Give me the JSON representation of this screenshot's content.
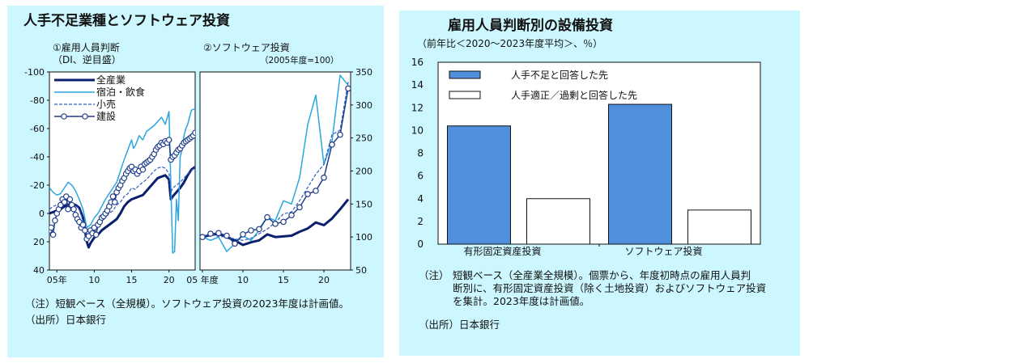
{
  "left": {
    "title": "人手不足業種とソフトウェア投資",
    "panel1_title": "①雇用人員判断",
    "panel1_subtitle": "（DI、逆目盛）",
    "panel2_title": "②ソフトウェア投資",
    "panel2_subtitle": "（2005年度=100）",
    "note": "（注）短観ベース（全規模）。ソフトウェア投資の2023年度は計画値。",
    "source": "（出所）日本銀行"
  },
  "right": {
    "title": "雇用人員判断別の設備投資",
    "subtitle": "（前年比＜2020～2023年度平均＞、％）",
    "note_label": "（注）",
    "note_lines": [
      "短観ベース（全産業全規模）。個票から、年度初時点の雇用人員判",
      "断別に、有形固定資産投資（除く土地投資）およびソフトウェア投資",
      "を集計。2023年度は計画値。"
    ],
    "source": "（出所）日本銀行"
  },
  "chart_data": [
    {
      "type": "line",
      "title": "①雇用人員判断",
      "subtitle": "（DI、逆目盛）",
      "y_inverted": true,
      "ylim": [
        -100,
        40
      ],
      "yticks": [
        -100,
        -80,
        -60,
        -40,
        -20,
        0,
        20,
        40
      ],
      "xlim": [
        2004,
        2023.5
      ],
      "xticks": [
        {
          "v": 2005,
          "label": "05年"
        },
        {
          "v": 2010,
          "label": "10"
        },
        {
          "v": 2015,
          "label": "15"
        },
        {
          "v": 2020,
          "label": "20"
        }
      ],
      "legend": [
        "全産業",
        "宿泊・飲食",
        "小売",
        "建設"
      ],
      "series": [
        {
          "name": "全産業",
          "color": "#0a1f6e",
          "width": 3,
          "style": "solid",
          "markers": false,
          "x": [
            2004.0,
            2004.5,
            2005.0,
            2005.5,
            2006.0,
            2006.5,
            2007.0,
            2007.5,
            2008.0,
            2008.5,
            2009.0,
            2009.25,
            2009.5,
            2010.0,
            2010.5,
            2011.0,
            2011.5,
            2012.0,
            2012.5,
            2013.0,
            2013.5,
            2014.0,
            2014.5,
            2015.0,
            2015.5,
            2016.0,
            2016.5,
            2017.0,
            2017.5,
            2018.0,
            2018.5,
            2019.0,
            2019.5,
            2020.0,
            2020.25,
            2020.5,
            2021.0,
            2021.5,
            2022.0,
            2022.5,
            2023.0,
            2023.5
          ],
          "y": [
            0,
            -1,
            -2,
            -3,
            -5,
            -6,
            -7,
            -6,
            -4,
            3,
            20,
            24,
            21,
            17,
            15,
            12,
            10,
            8,
            6,
            4,
            0,
            -5,
            -8,
            -10,
            -11,
            -12,
            -13,
            -16,
            -19,
            -22,
            -25,
            -26,
            -27,
            -24,
            -10,
            -12,
            -15,
            -18,
            -22,
            -27,
            -31,
            -33
          ]
        },
        {
          "name": "宿泊・飲食",
          "color": "#2aa6e0",
          "width": 1.5,
          "style": "solid",
          "markers": false,
          "x": [
            2004.0,
            2004.5,
            2005.0,
            2005.5,
            2006.0,
            2006.5,
            2007.0,
            2007.5,
            2008.0,
            2008.5,
            2009.0,
            2009.5,
            2010.0,
            2010.5,
            2011.0,
            2011.5,
            2012.0,
            2012.5,
            2013.0,
            2013.5,
            2014.0,
            2014.5,
            2015.0,
            2015.25,
            2015.5,
            2016.0,
            2016.5,
            2017.0,
            2017.5,
            2018.0,
            2018.5,
            2019.0,
            2019.5,
            2020.0,
            2020.25,
            2020.5,
            2020.75,
            2021.0,
            2021.25,
            2021.5,
            2021.75,
            2022.0,
            2022.25,
            2022.5,
            2022.75,
            2023.0,
            2023.5
          ],
          "y": [
            -18,
            -15,
            -13,
            -14,
            -18,
            -22,
            -20,
            -16,
            -10,
            -3,
            10,
            8,
            3,
            0,
            -5,
            -10,
            -14,
            -18,
            -22,
            -30,
            -38,
            -45,
            -52,
            -46,
            -48,
            -55,
            -52,
            -58,
            -60,
            -62,
            -65,
            -68,
            -63,
            -72,
            -20,
            28,
            27,
            -10,
            5,
            -40,
            -45,
            -55,
            -60,
            -63,
            -68,
            -73,
            -74
          ]
        },
        {
          "name": "小売",
          "color": "#2e5fbf",
          "width": 1.2,
          "style": "dashed",
          "markers": false,
          "x": [
            2004.0,
            2004.5,
            2005.0,
            2005.5,
            2006.0,
            2006.5,
            2007.0,
            2007.5,
            2008.0,
            2008.5,
            2009.0,
            2009.5,
            2010.0,
            2010.5,
            2011.0,
            2011.5,
            2012.0,
            2012.5,
            2013.0,
            2013.5,
            2014.0,
            2014.5,
            2015.0,
            2015.5,
            2016.0,
            2016.5,
            2017.0,
            2017.5,
            2018.0,
            2018.5,
            2019.0,
            2019.5,
            2020.0,
            2020.25,
            2020.5,
            2021.0,
            2021.5,
            2022.0,
            2022.5,
            2023.0,
            2023.5
          ],
          "y": [
            -3,
            -5,
            -6,
            -5,
            -8,
            -10,
            -8,
            -6,
            -3,
            5,
            15,
            12,
            10,
            8,
            6,
            3,
            0,
            -2,
            -6,
            -8,
            -12,
            -14,
            -18,
            -17,
            -20,
            -22,
            -24,
            -27,
            -30,
            -32,
            -33,
            -32,
            -28,
            -15,
            -18,
            -20,
            -22,
            -25,
            -28,
            -30,
            -33
          ]
        },
        {
          "name": "建設",
          "color": "#1f3d8a",
          "width": 1.5,
          "style": "solid",
          "markers": true,
          "x": [
            2004.0,
            2004.25,
            2004.5,
            2004.75,
            2005.0,
            2005.25,
            2005.5,
            2005.75,
            2006.0,
            2006.25,
            2006.5,
            2006.75,
            2007.0,
            2007.25,
            2007.5,
            2007.75,
            2008.0,
            2008.25,
            2008.5,
            2008.75,
            2009.0,
            2009.25,
            2009.5,
            2009.75,
            2010.0,
            2010.25,
            2010.5,
            2010.75,
            2011.0,
            2011.25,
            2011.5,
            2011.75,
            2012.0,
            2012.25,
            2012.5,
            2012.75,
            2013.0,
            2013.25,
            2013.5,
            2013.75,
            2014.0,
            2014.25,
            2014.5,
            2014.75,
            2015.0,
            2015.25,
            2015.5,
            2015.75,
            2016.0,
            2016.25,
            2016.5,
            2016.75,
            2017.0,
            2017.25,
            2017.5,
            2017.75,
            2018.0,
            2018.25,
            2018.5,
            2018.75,
            2019.0,
            2019.25,
            2019.5,
            2019.75,
            2020.0,
            2020.25,
            2020.5,
            2020.75,
            2021.0,
            2021.25,
            2021.5,
            2021.75,
            2022.0,
            2022.25,
            2022.5,
            2022.75,
            2023.0,
            2023.25,
            2023.5
          ],
          "y": [
            12,
            10,
            15,
            5,
            0,
            -3,
            -6,
            -10,
            -8,
            -12,
            -3,
            -10,
            -6,
            -3,
            1,
            4,
            6,
            10,
            8,
            12,
            18,
            16,
            12,
            14,
            10,
            15,
            8,
            6,
            3,
            2,
            0,
            -2,
            -5,
            -8,
            -12,
            -8,
            -15,
            -18,
            -20,
            -23,
            -25,
            -28,
            -30,
            -32,
            -33,
            -30,
            -31,
            -28,
            -30,
            -33,
            -31,
            -35,
            -36,
            -37,
            -38,
            -40,
            -42,
            -45,
            -47,
            -48,
            -50,
            -49,
            -51,
            -50,
            -52,
            -38,
            -40,
            -41,
            -43,
            -45,
            -46,
            -48,
            -50,
            -51,
            -52,
            -53,
            -54,
            -55,
            -57
          ]
        }
      ]
    },
    {
      "type": "line",
      "title": "②ソフトウェア投資",
      "subtitle": "（2005年度=100）",
      "ylim": [
        50,
        350
      ],
      "yticks": [
        50,
        100,
        150,
        200,
        250,
        300,
        350
      ],
      "xlim": [
        2004.7,
        2023.3
      ],
      "xticks": [
        {
          "v": 2005,
          "label": "05 年度"
        },
        {
          "v": 2010,
          "label": "10"
        },
        {
          "v": 2015,
          "label": "15"
        },
        {
          "v": 2020,
          "label": "20"
        }
      ],
      "series": [
        {
          "name": "全産業",
          "color": "#0a1f6e",
          "width": 3,
          "style": "solid",
          "markers": false,
          "x": [
            2005,
            2006,
            2007,
            2008,
            2009,
            2010,
            2011,
            2012,
            2013,
            2014,
            2015,
            2016,
            2017,
            2018,
            2019,
            2020,
            2021,
            2022,
            2023
          ],
          "y": [
            100,
            103,
            105,
            100,
            95,
            88,
            92,
            95,
            104,
            100,
            101,
            102,
            108,
            113,
            122,
            118,
            128,
            142,
            157
          ]
        },
        {
          "name": "宿泊・飲食",
          "color": "#2aa6e0",
          "width": 1.5,
          "style": "solid",
          "markers": false,
          "x": [
            2005,
            2006,
            2007,
            2008,
            2009,
            2010,
            2011,
            2012,
            2013,
            2014,
            2015,
            2016,
            2017,
            2018,
            2019,
            2020,
            2021,
            2022,
            2023
          ],
          "y": [
            100,
            95,
            100,
            78,
            90,
            102,
            95,
            110,
            130,
            125,
            155,
            150,
            190,
            270,
            315,
            210,
            245,
            345,
            330
          ]
        },
        {
          "name": "小売",
          "color": "#2e5fbf",
          "width": 1.2,
          "style": "dashed",
          "markers": false,
          "x": [
            2005,
            2006,
            2007,
            2008,
            2009,
            2010,
            2011,
            2012,
            2013,
            2014,
            2015,
            2016,
            2017,
            2018,
            2019,
            2020,
            2021,
            2022,
            2023
          ],
          "y": [
            100,
            104,
            101,
            100,
            97,
            95,
            98,
            105,
            112,
            122,
            135,
            138,
            155,
            175,
            195,
            210,
            255,
            262,
            335
          ]
        },
        {
          "name": "建設",
          "color": "#1f3d8a",
          "width": 1.5,
          "style": "solid",
          "markers": true,
          "x": [
            2005,
            2006,
            2007,
            2008,
            2009,
            2010,
            2011,
            2012,
            2013,
            2014,
            2015,
            2016,
            2017,
            2018,
            2019,
            2020,
            2021,
            2022,
            2023
          ],
          "y": [
            100,
            105,
            106,
            102,
            90,
            104,
            110,
            112,
            130,
            120,
            123,
            133,
            145,
            165,
            170,
            190,
            240,
            255,
            325
          ]
        }
      ]
    },
    {
      "type": "bar",
      "title": "雇用人員判断別の設備投資",
      "subtitle": "（前年比＜2020～2023年度平均＞、％）",
      "categories": [
        "有形固定資産投資",
        "ソフトウェア投資"
      ],
      "ylim": [
        0,
        16
      ],
      "yticks": [
        0,
        2,
        4,
        6,
        8,
        10,
        12,
        14,
        16
      ],
      "legend": "top-left",
      "series": [
        {
          "name": "人手不足と回答した先",
          "color": "#4f8fdc",
          "values": [
            10.4,
            12.3
          ]
        },
        {
          "name": "人手適正／過剰と回答した先",
          "color": "#ffffff",
          "values": [
            4.0,
            3.0
          ]
        }
      ]
    }
  ]
}
